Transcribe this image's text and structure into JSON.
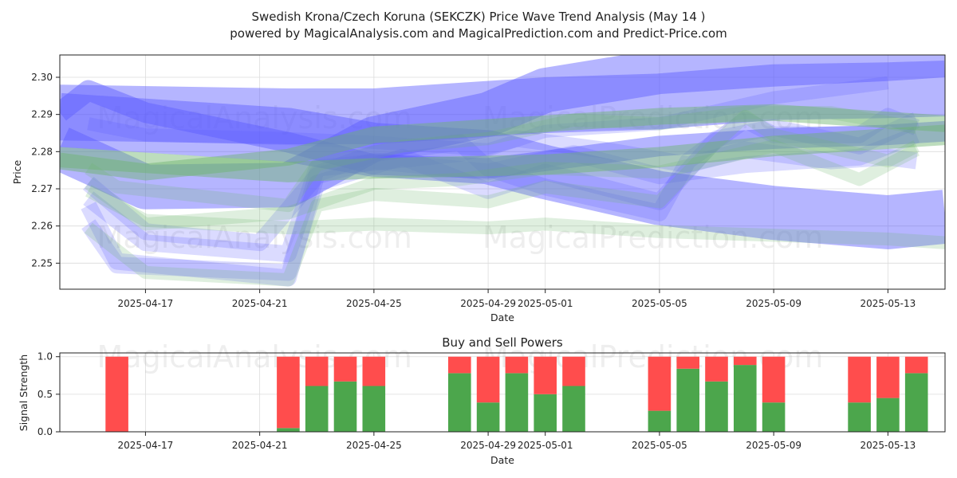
{
  "title_line1": "Swedish Krona/Czech Koruna (SEKCZK) Price Wave Trend Analysis (May 14 )",
  "title_line2": "powered by MagicalAnalysis.com and MagicalPrediction.com and Predict-Price.com",
  "watermarks": [
    "MagicalAnalysis.com",
    "MagicalPrediction.com"
  ],
  "colors": {
    "blue": "#5a5aff",
    "green": "#6cb46c",
    "buy": "#4ca64c",
    "sell": "#ff4d4d"
  },
  "chart_data": [
    {
      "type": "area",
      "xlabel": "Date",
      "ylabel": "Price",
      "x_ticks": [
        "2025-04-17",
        "2025-04-21",
        "2025-04-25",
        "2025-04-29",
        "2025-05-01",
        "2025-05-05",
        "2025-05-09",
        "2025-05-13"
      ],
      "y_ticks": [
        "2.25",
        "2.26",
        "2.27",
        "2.28",
        "2.29",
        "2.30"
      ],
      "xlim": [
        "2025-04-14",
        "2025-05-15"
      ],
      "ylim": [
        2.243,
        2.306
      ],
      "grid": true,
      "series": [
        {
          "color": "blue",
          "opacity": 0.45,
          "points": [
            [
              "2025-04-14",
              2.2905
            ],
            [
              "2025-04-22",
              2.2895
            ],
            [
              "2025-04-25",
              2.2895
            ],
            [
              "2025-05-01",
              2.2925
            ],
            [
              "2025-05-05",
              2.2935
            ],
            [
              "2025-05-09",
              2.296
            ],
            [
              "2025-05-13",
              2.2965
            ],
            [
              "2025-05-15",
              2.297
            ]
          ],
          "width": 0.015
        },
        {
          "color": "blue",
          "opacity": 0.45,
          "points": [
            [
              "2025-04-14",
              2.2885
            ],
            [
              "2025-04-22",
              2.2845
            ],
            [
              "2025-04-25",
              2.2805
            ],
            [
              "2025-04-29",
              2.2785
            ],
            [
              "2025-05-01",
              2.2745
            ],
            [
              "2025-05-05",
              2.2675
            ],
            [
              "2025-05-09",
              2.2635
            ],
            [
              "2025-05-13",
              2.261
            ],
            [
              "2025-05-15",
              2.2625
            ]
          ],
          "width": 0.0145
        },
        {
          "color": "blue",
          "opacity": 0.45,
          "points": [
            [
              "2025-04-14",
              2.281
            ],
            [
              "2025-04-17",
              2.2705
            ],
            [
              "2025-04-22",
              2.271
            ],
            [
              "2025-04-25",
              2.2835
            ],
            [
              "2025-04-29",
              2.29
            ],
            [
              "2025-05-01",
              2.2965
            ],
            [
              "2025-05-05",
              2.3015
            ],
            [
              "2025-05-09",
              2.3035
            ],
            [
              "2025-05-13",
              2.305
            ],
            [
              "2025-05-15",
              2.306
            ]
          ],
          "width": 0.012
        },
        {
          "color": "blue",
          "opacity": 0.45,
          "points": [
            [
              "2025-04-14",
              2.2905
            ],
            [
              "2025-04-15",
              2.2965
            ],
            [
              "2025-04-17",
              2.2905
            ],
            [
              "2025-04-22",
              2.2825
            ],
            [
              "2025-04-25",
              2.2765
            ],
            [
              "2025-04-29",
              2.2755
            ],
            [
              "2025-05-01",
              2.2775
            ],
            [
              "2025-05-05",
              2.2815
            ],
            [
              "2025-05-09",
              2.2835
            ],
            [
              "2025-05-13",
              2.2845
            ],
            [
              "2025-05-15",
              2.2855
            ]
          ],
          "width": 0.0055
        },
        {
          "color": "blue",
          "opacity": 0.22,
          "points": [
            [
              "2025-04-15",
              2.2655
            ],
            [
              "2025-04-16",
              2.2505
            ],
            [
              "2025-04-22",
              2.246
            ],
            [
              "2025-04-23",
              2.274
            ],
            [
              "2025-04-25",
              2.2795
            ],
            [
              "2025-04-28",
              2.2825
            ],
            [
              "2025-04-29",
              2.2755
            ],
            [
              "2025-05-01",
              2.2705
            ],
            [
              "2025-05-05",
              2.2635
            ],
            [
              "2025-05-06",
              2.2775
            ],
            [
              "2025-05-08",
              2.2885
            ],
            [
              "2025-05-09",
              2.2845
            ],
            [
              "2025-05-12",
              2.2845
            ],
            [
              "2025-05-13",
              2.2895
            ],
            [
              "2025-05-14",
              2.2865
            ]
          ],
          "width": 0.0045
        },
        {
          "color": "blue",
          "opacity": 0.22,
          "points": [
            [
              "2025-04-15",
              2.2605
            ],
            [
              "2025-04-16",
              2.2495
            ],
            [
              "2025-04-22",
              2.2475
            ],
            [
              "2025-04-23",
              2.2715
            ],
            [
              "2025-04-26",
              2.2785
            ],
            [
              "2025-04-29",
              2.2695
            ],
            [
              "2025-05-01",
              2.2745
            ],
            [
              "2025-05-05",
              2.2665
            ],
            [
              "2025-05-07",
              2.2835
            ],
            [
              "2025-05-09",
              2.2865
            ],
            [
              "2025-05-12",
              2.2815
            ],
            [
              "2025-05-14",
              2.2885
            ]
          ],
          "width": 0.0045
        },
        {
          "color": "blue",
          "opacity": 0.22,
          "points": [
            [
              "2025-04-15",
              2.2675
            ],
            [
              "2025-04-17",
              2.2555
            ],
            [
              "2025-04-22",
              2.2525
            ],
            [
              "2025-04-23",
              2.2755
            ],
            [
              "2025-04-28",
              2.2795
            ],
            [
              "2025-04-30",
              2.2835
            ],
            [
              "2025-05-03",
              2.2805
            ],
            [
              "2025-05-06",
              2.2765
            ],
            [
              "2025-05-08",
              2.2805
            ],
            [
              "2025-05-11",
              2.2775
            ],
            [
              "2025-05-13",
              2.2785
            ],
            [
              "2025-05-14",
              2.2775
            ]
          ],
          "width": 0.0045
        },
        {
          "color": "blue",
          "opacity": 0.22,
          "points": [
            [
              "2025-04-15",
              2.2715
            ],
            [
              "2025-04-17",
              2.2585
            ],
            [
              "2025-04-21",
              2.2555
            ],
            [
              "2025-04-23",
              2.2735
            ],
            [
              "2025-04-25",
              2.2775
            ],
            [
              "2025-04-29",
              2.2745
            ],
            [
              "2025-05-02",
              2.2795
            ],
            [
              "2025-05-05",
              2.2735
            ],
            [
              "2025-05-08",
              2.2765
            ],
            [
              "2025-05-12",
              2.2785
            ],
            [
              "2025-05-14",
              2.2845
            ]
          ],
          "width": 0.0045
        },
        {
          "color": "blue",
          "opacity": 0.22,
          "points": [
            [
              "2025-04-15",
              2.2875
            ],
            [
              "2025-04-17",
              2.2845
            ],
            [
              "2025-04-22",
              2.2835
            ],
            [
              "2025-04-25",
              2.2825
            ],
            [
              "2025-04-29",
              2.2805
            ],
            [
              "2025-05-01",
              2.2855
            ],
            [
              "2025-05-05",
              2.2875
            ],
            [
              "2025-05-09",
              2.2945
            ],
            [
              "2025-05-13",
              2.2985
            ]
          ],
          "width": 0.0035
        },
        {
          "color": "green",
          "opacity": 0.45,
          "points": [
            [
              "2025-04-14",
              2.2785
            ],
            [
              "2025-04-22",
              2.2745
            ],
            [
              "2025-04-25",
              2.2755
            ],
            [
              "2025-05-01",
              2.2765
            ],
            [
              "2025-05-05",
              2.2785
            ],
            [
              "2025-05-09",
              2.2815
            ],
            [
              "2025-05-13",
              2.2835
            ],
            [
              "2025-05-15",
              2.2845
            ]
          ],
          "width": 0.0055
        },
        {
          "color": "green",
          "opacity": 0.45,
          "points": [
            [
              "2025-04-14",
              2.2775
            ],
            [
              "2025-04-17",
              2.2745
            ],
            [
              "2025-04-22",
              2.2785
            ],
            [
              "2025-04-25",
              2.2845
            ],
            [
              "2025-04-29",
              2.2865
            ],
            [
              "2025-05-01",
              2.2875
            ],
            [
              "2025-05-05",
              2.2895
            ],
            [
              "2025-05-09",
              2.2905
            ],
            [
              "2025-05-13",
              2.2885
            ],
            [
              "2025-05-15",
              2.2875
            ]
          ],
          "width": 0.0045
        },
        {
          "color": "green",
          "opacity": 0.22,
          "points": [
            [
              "2025-04-15",
              2.2695
            ],
            [
              "2025-04-17",
              2.2615
            ],
            [
              "2025-04-22",
              2.2595
            ],
            [
              "2025-04-25",
              2.2605
            ],
            [
              "2025-04-29",
              2.2595
            ],
            [
              "2025-05-01",
              2.2605
            ],
            [
              "2025-05-05",
              2.2585
            ],
            [
              "2025-05-09",
              2.2575
            ],
            [
              "2025-05-13",
              2.2565
            ],
            [
              "2025-05-15",
              2.2555
            ]
          ],
          "width": 0.0035
        },
        {
          "color": "green",
          "opacity": 0.22,
          "points": [
            [
              "2025-04-15",
              2.2595
            ],
            [
              "2025-04-17",
              2.2475
            ],
            [
              "2025-04-22",
              2.2455
            ],
            [
              "2025-04-23",
              2.2655
            ],
            [
              "2025-04-25",
              2.2685
            ],
            [
              "2025-04-29",
              2.2665
            ],
            [
              "2025-05-01",
              2.2705
            ],
            [
              "2025-05-05",
              2.2665
            ],
            [
              "2025-05-07",
              2.2825
            ],
            [
              "2025-05-08",
              2.2895
            ],
            [
              "2025-05-09",
              2.2845
            ],
            [
              "2025-05-13",
              2.2775
            ],
            [
              "2025-05-14",
              2.2815
            ]
          ],
          "width": 0.0035
        },
        {
          "color": "green",
          "opacity": 0.22,
          "points": [
            [
              "2025-04-15",
              2.2755
            ],
            [
              "2025-04-16",
              2.2705
            ],
            [
              "2025-04-22",
              2.2655
            ],
            [
              "2025-04-23",
              2.2765
            ],
            [
              "2025-04-26",
              2.2815
            ],
            [
              "2025-04-29",
              2.2835
            ],
            [
              "2025-05-02",
              2.2885
            ],
            [
              "2025-05-05",
              2.2875
            ],
            [
              "2025-05-08",
              2.2905
            ],
            [
              "2025-05-11",
              2.2905
            ],
            [
              "2025-05-14",
              2.2865
            ]
          ],
          "width": 0.0035
        },
        {
          "color": "green",
          "opacity": 0.22,
          "points": [
            [
              "2025-04-15",
              2.2715
            ],
            [
              "2025-04-17",
              2.2605
            ],
            [
              "2025-04-22",
              2.2635
            ],
            [
              "2025-04-25",
              2.2715
            ],
            [
              "2025-04-28",
              2.2725
            ],
            [
              "2025-05-01",
              2.2755
            ],
            [
              "2025-05-05",
              2.2745
            ],
            [
              "2025-05-09",
              2.2815
            ],
            [
              "2025-05-12",
              2.2725
            ],
            [
              "2025-05-14",
              2.2805
            ]
          ],
          "width": 0.0035
        }
      ]
    },
    {
      "type": "bar",
      "title": "Buy and Sell Powers",
      "xlabel": "Date",
      "ylabel": "Signal Strength",
      "x_ticks": [
        "2025-04-17",
        "2025-04-21",
        "2025-04-25",
        "2025-04-29",
        "2025-05-01",
        "2025-05-05",
        "2025-05-09",
        "2025-05-13"
      ],
      "y_ticks": [
        "0.0",
        "0.5",
        "1.0"
      ],
      "xlim": [
        "2025-04-14",
        "2025-05-15"
      ],
      "ylim": [
        0,
        1.05
      ],
      "grid": true,
      "stacked": true,
      "series_colors": {
        "buy": "buy",
        "sell": "sell"
      },
      "bars": [
        {
          "date": "2025-04-16",
          "buy": 0.0,
          "sell": 1.0
        },
        {
          "date": "2025-04-22",
          "buy": 0.05,
          "sell": 0.95
        },
        {
          "date": "2025-04-23",
          "buy": 0.61,
          "sell": 0.39
        },
        {
          "date": "2025-04-24",
          "buy": 0.67,
          "sell": 0.33
        },
        {
          "date": "2025-04-25",
          "buy": 0.61,
          "sell": 0.39
        },
        {
          "date": "2025-04-28",
          "buy": 0.78,
          "sell": 0.22
        },
        {
          "date": "2025-04-29",
          "buy": 0.39,
          "sell": 0.61
        },
        {
          "date": "2025-04-30",
          "buy": 0.78,
          "sell": 0.22
        },
        {
          "date": "2025-05-01",
          "buy": 0.5,
          "sell": 0.5
        },
        {
          "date": "2025-05-02",
          "buy": 0.61,
          "sell": 0.39
        },
        {
          "date": "2025-05-05",
          "buy": 0.28,
          "sell": 0.72
        },
        {
          "date": "2025-05-06",
          "buy": 0.84,
          "sell": 0.16
        },
        {
          "date": "2025-05-07",
          "buy": 0.67,
          "sell": 0.33
        },
        {
          "date": "2025-05-08",
          "buy": 0.89,
          "sell": 0.11
        },
        {
          "date": "2025-05-09",
          "buy": 0.39,
          "sell": 0.61
        },
        {
          "date": "2025-05-12",
          "buy": 0.39,
          "sell": 0.61
        },
        {
          "date": "2025-05-13",
          "buy": 0.45,
          "sell": 0.55
        },
        {
          "date": "2025-05-14",
          "buy": 0.78,
          "sell": 0.22
        }
      ]
    }
  ]
}
